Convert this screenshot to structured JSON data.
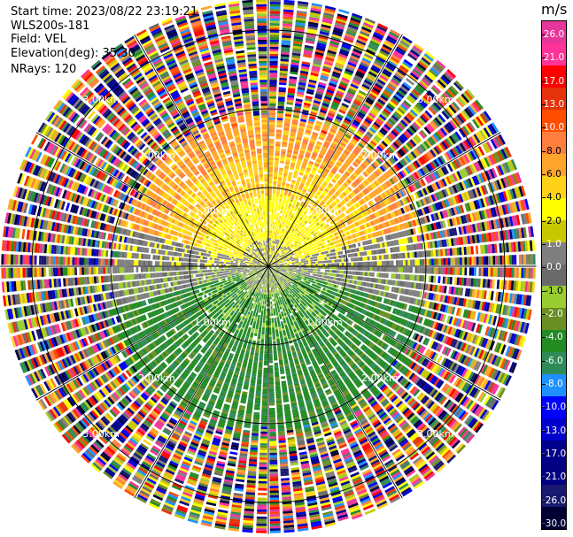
{
  "header": {
    "start_time": "Start time: 2023/08/22 23:19:21",
    "instrument": "WLS200s-181",
    "field": "Field: VEL",
    "elevation": "Elevation(deg): 35.30",
    "nrays": "NRays: 120"
  },
  "colorbar": {
    "unit": "m/s",
    "colors": [
      "#e6369a",
      "#ff3399",
      "#ff0000",
      "#e6320a",
      "#ff4d00",
      "#ff7f3f",
      "#ffa52b",
      "#ffd21a",
      "#ffff00",
      "#c8c800",
      "#7f7f7f",
      "#6a6a6a",
      "#9acd32",
      "#6b8e23",
      "#228b22",
      "#2e8b57",
      "#1e90ff",
      "#0000ff",
      "#0000cd",
      "#00008b",
      "#000080",
      "#191970",
      "#000033"
    ],
    "ticks": [
      "26.0",
      "21.0",
      "17.0",
      "13.0",
      "10.0",
      "8.0",
      "6.0",
      "4.0",
      "2.0",
      "1.0",
      "0.0",
      "-1.0",
      "-2.0",
      "-4.0",
      "-6.0",
      "-8.0",
      "-10.0",
      "-13.0",
      "-17.0",
      "-21.0",
      "-26.0",
      "-30.0"
    ]
  },
  "chart_data": {
    "type": "heatmap",
    "projection": "polar (PPI)",
    "field": "VEL",
    "units": "m/s",
    "n_rays": 120,
    "elevation_deg": 35.3,
    "range_rings_km": [
      1.0,
      2.0,
      3.0
    ],
    "max_range_km": 3.4,
    "ring_labels": [
      "1.00km",
      "2.00km",
      "3.00km"
    ],
    "spokes_deg": [
      0,
      30,
      60,
      90,
      120,
      150,
      180,
      210,
      240,
      270,
      300,
      330
    ],
    "grid": true,
    "velocity_pattern": {
      "north_sector": "positive 2.0 to 10.0 m/s (yellow/orange)",
      "south_sector": "negative -4.0 to -8.0 m/s (green)",
      "east_west": "near zero (gray)",
      "far_range": "noise, all values"
    }
  }
}
